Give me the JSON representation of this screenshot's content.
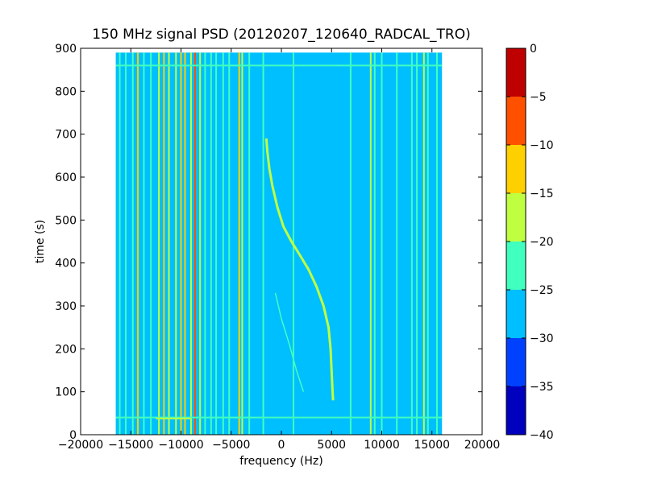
{
  "chart_data": {
    "type": "heatmap",
    "title": "150 MHz signal PSD (20120207_120640_RADCAL_TRO)",
    "xlabel": "frequency (Hz)",
    "ylabel": "time (s)",
    "xlim": [
      -20000,
      20000
    ],
    "ylim": [
      0,
      900
    ],
    "xticks": [
      -20000,
      -15000,
      -10000,
      -5000,
      0,
      5000,
      10000,
      15000,
      20000
    ],
    "yticks": [
      0,
      100,
      200,
      300,
      400,
      500,
      600,
      700,
      800,
      900
    ],
    "data_extent": {
      "x": [
        -16500,
        16000
      ],
      "y": [
        0,
        890
      ]
    },
    "background_level": -27.5,
    "colorbar": {
      "label": "",
      "levels": [
        -40,
        -35,
        -30,
        -25,
        -20,
        -15,
        -10,
        -5,
        0
      ],
      "colors": [
        "#0000bf",
        "#0040ff",
        "#00bfff",
        "#40ffbf",
        "#bfff40",
        "#ffd000",
        "#ff5000",
        "#bf0000"
      ],
      "tick_labels": [
        "0",
        "−5",
        "−10",
        "−15",
        "−20",
        "−25",
        "−30",
        "−35",
        "−40"
      ]
    },
    "vertical_lines": [
      {
        "freq": -16100,
        "level": -22.5
      },
      {
        "freq": -15500,
        "level": -22.5
      },
      {
        "freq": -14800,
        "level": -22.5
      },
      {
        "freq": -14300,
        "level": -12.5
      },
      {
        "freq": -13700,
        "level": -22.5
      },
      {
        "freq": -13000,
        "level": -22.5
      },
      {
        "freq": -12200,
        "level": -17.5
      },
      {
        "freq": -11700,
        "level": -12.5
      },
      {
        "freq": -11200,
        "level": -17.5
      },
      {
        "freq": -10500,
        "level": -17.5
      },
      {
        "freq": -10000,
        "level": -12.5
      },
      {
        "freq": -9600,
        "level": -12.5
      },
      {
        "freq": -9000,
        "level": -17.5
      },
      {
        "freq": -8600,
        "level": -7.5
      },
      {
        "freq": -8100,
        "level": -17.5
      },
      {
        "freq": -7600,
        "level": -22.5
      },
      {
        "freq": -7000,
        "level": -22.5
      },
      {
        "freq": -6500,
        "level": -22.5
      },
      {
        "freq": -5800,
        "level": -22.5
      },
      {
        "freq": -5200,
        "level": -22.5
      },
      {
        "freq": -4200,
        "level": -12.5
      },
      {
        "freq": -3900,
        "level": -17.5
      },
      {
        "freq": -3200,
        "level": -22.5
      },
      {
        "freq": -1800,
        "level": -22.5
      },
      {
        "freq": 1200,
        "level": -22.5
      },
      {
        "freq": 6900,
        "level": -22.5
      },
      {
        "freq": 8900,
        "level": -17.5
      },
      {
        "freq": 9300,
        "level": -22.5
      },
      {
        "freq": 10000,
        "level": -22.5
      },
      {
        "freq": 11500,
        "level": -22.5
      },
      {
        "freq": 13000,
        "level": -22.5
      },
      {
        "freq": 13500,
        "level": -22.5
      },
      {
        "freq": 14200,
        "level": -17.5
      },
      {
        "freq": 14600,
        "level": -22.5
      },
      {
        "freq": 15500,
        "level": -22.5
      }
    ],
    "horizontal_lines": [
      {
        "time": 860,
        "x": [
          -16500,
          16000
        ],
        "level": -22.5
      },
      {
        "time": 40,
        "x": [
          -16500,
          16000
        ],
        "level": -22.5
      },
      {
        "time": 38,
        "x": [
          -12500,
          -9000
        ],
        "level": -17.5
      }
    ],
    "doppler_curve": {
      "level": -17.5,
      "points": [
        [
          -1500,
          690
        ],
        [
          -1400,
          660
        ],
        [
          -1200,
          620
        ],
        [
          -900,
          580
        ],
        [
          -400,
          530
        ],
        [
          200,
          485
        ],
        [
          1000,
          450
        ],
        [
          1800,
          420
        ],
        [
          2700,
          385
        ],
        [
          3500,
          345
        ],
        [
          4200,
          300
        ],
        [
          4700,
          250
        ],
        [
          4900,
          200
        ],
        [
          5000,
          150
        ],
        [
          5100,
          100
        ],
        [
          5150,
          80
        ]
      ]
    },
    "faint_trace": {
      "level": -22.5,
      "points": [
        [
          -600,
          330
        ],
        [
          0,
          270
        ],
        [
          800,
          210
        ],
        [
          1500,
          150
        ],
        [
          2200,
          100
        ]
      ]
    }
  }
}
